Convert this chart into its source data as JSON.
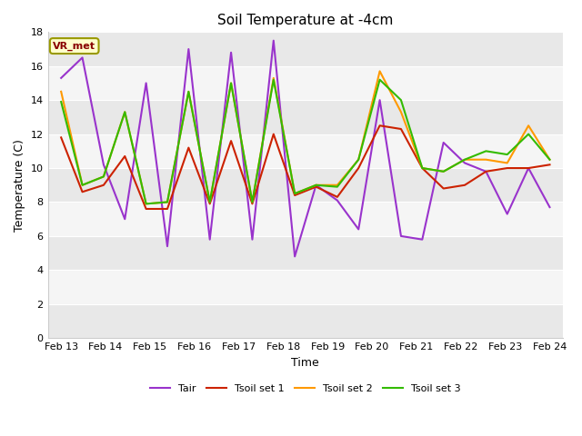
{
  "title": "Soil Temperature at -4cm",
  "xlabel": "Time",
  "ylabel": "Temperature (C)",
  "ylim": [
    0,
    18
  ],
  "background_color": "#ffffff",
  "plot_bg_stripes": [
    "#e8e8e8",
    "#f5f5f5"
  ],
  "annotation_text": "VR_met",
  "annotation_bg": "#ffffcc",
  "annotation_border": "#999900",
  "x_tick_labels": [
    "Feb 13",
    "Feb 14",
    "Feb 15",
    "Feb 16",
    "Feb 17",
    "Feb 18",
    "Feb 19",
    "Feb 20",
    "Feb 21",
    "Feb 22",
    "Feb 23",
    "Feb 24"
  ],
  "series": {
    "Tair": {
      "color": "#9933cc",
      "linewidth": 1.5,
      "values": [
        15.3,
        16.5,
        10.2,
        7.0,
        15.0,
        5.4,
        17.0,
        5.8,
        16.8,
        5.8,
        17.5,
        4.8,
        9.0,
        8.1,
        6.4,
        14.0,
        6.0,
        5.8,
        11.5,
        10.3,
        9.8,
        7.3,
        10.0,
        7.7
      ]
    },
    "Tsoil set 1": {
      "color": "#cc2200",
      "linewidth": 1.5,
      "values": [
        11.8,
        8.6,
        9.0,
        10.7,
        7.6,
        7.6,
        11.2,
        7.9,
        11.6,
        7.9,
        12.0,
        8.4,
        8.9,
        8.3,
        10.0,
        12.5,
        12.3,
        10.0,
        8.8,
        9.0,
        9.8,
        10.0,
        10.0,
        10.2
      ]
    },
    "Tsoil set 2": {
      "color": "#ff9900",
      "linewidth": 1.5,
      "values": [
        14.5,
        9.0,
        9.5,
        13.3,
        7.9,
        8.0,
        14.5,
        8.0,
        15.0,
        8.0,
        15.3,
        8.5,
        9.0,
        9.0,
        10.5,
        15.7,
        13.3,
        10.0,
        9.8,
        10.5,
        10.5,
        10.3,
        12.5,
        10.5
      ]
    },
    "Tsoil set 3": {
      "color": "#33bb00",
      "linewidth": 1.5,
      "values": [
        13.9,
        9.0,
        9.5,
        13.3,
        7.9,
        8.0,
        14.5,
        8.0,
        15.0,
        8.0,
        15.2,
        8.5,
        9.0,
        8.9,
        10.5,
        15.2,
        14.0,
        10.0,
        9.8,
        10.5,
        11.0,
        10.8,
        12.0,
        10.5
      ]
    }
  }
}
